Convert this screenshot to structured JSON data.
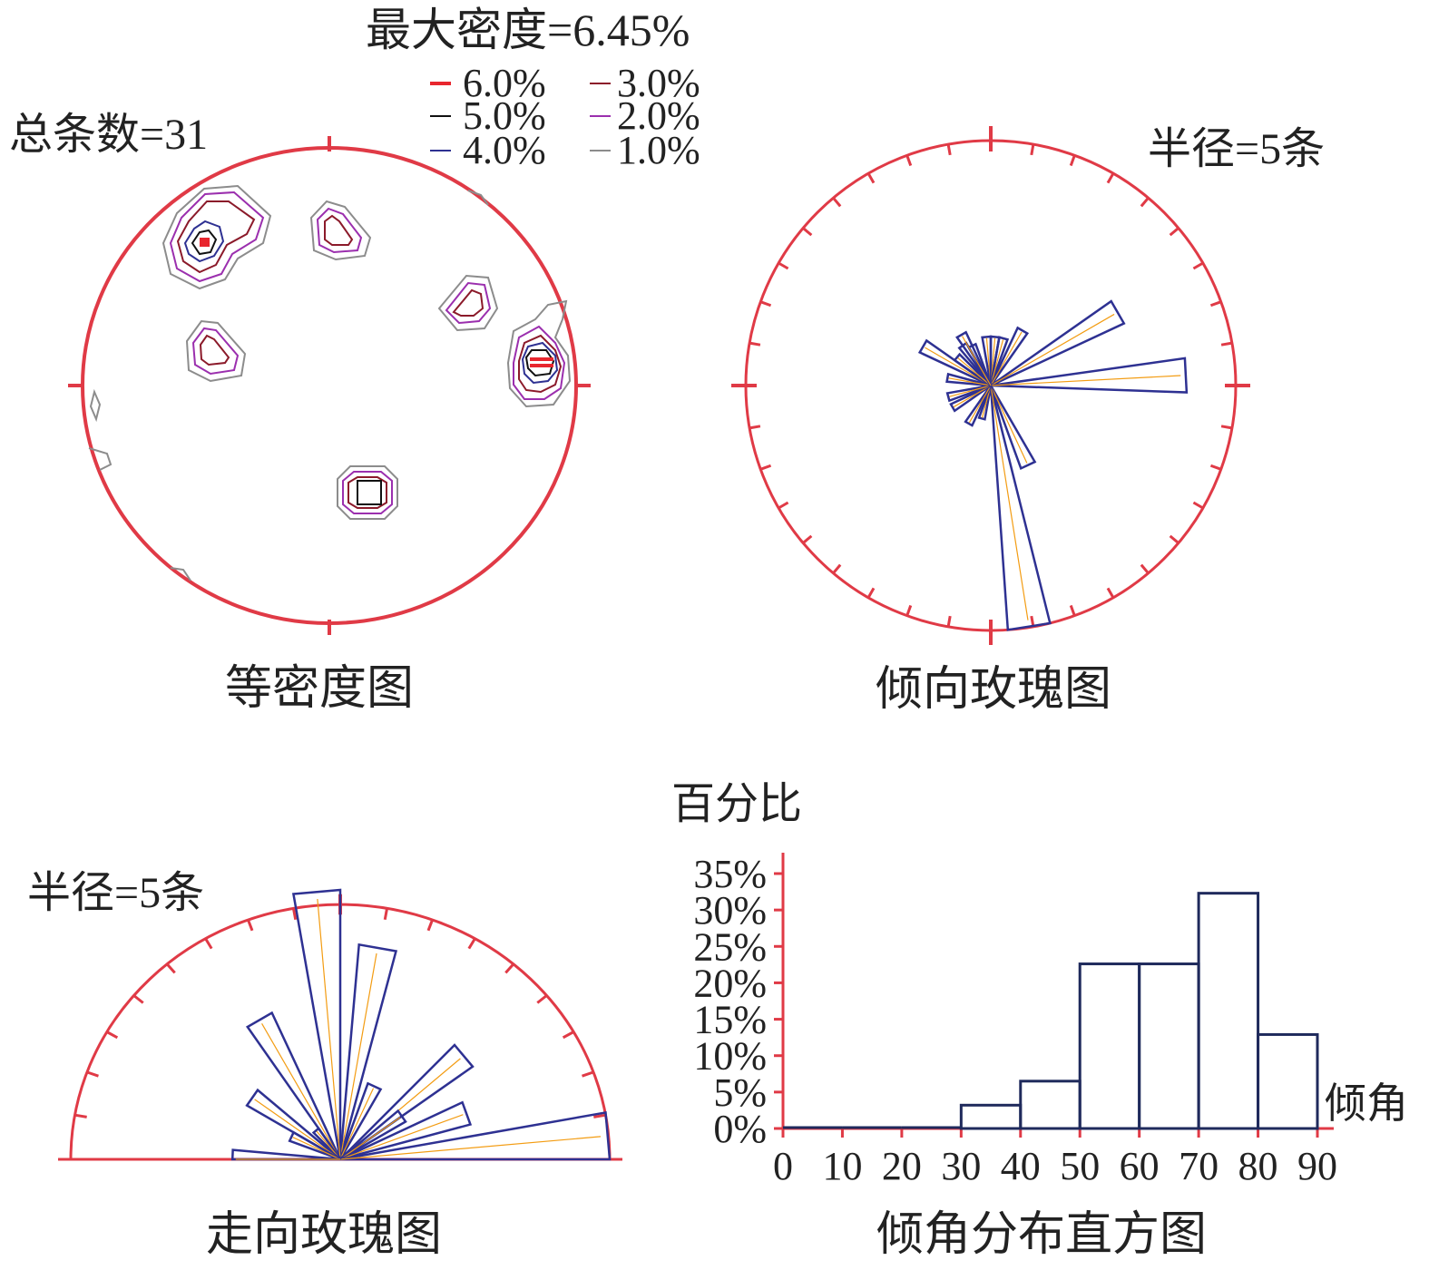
{
  "contour_plot": {
    "caption": "等密度图",
    "total_label": "总条数=31",
    "max_density_label": "最大密度=6.45%",
    "legend": [
      {
        "label": "6.0%",
        "color": "#e8262e"
      },
      {
        "label": "5.0%",
        "color": "#111111"
      },
      {
        "label": "4.0%",
        "color": "#2e3192"
      },
      {
        "label": "3.0%",
        "color": "#8b1a2a"
      },
      {
        "label": "2.0%",
        "color": "#9b2fae"
      },
      {
        "label": "1.0%",
        "color": "#8c8c8c"
      }
    ]
  },
  "dip_direction_rose": {
    "caption": "倾向玫瑰图",
    "radius_label": "半径=5条"
  },
  "strike_rose": {
    "caption": "走向玫瑰图",
    "radius_label": "半径=5条"
  },
  "colors": {
    "frame": "#e03a46",
    "petal": "#2e3192",
    "petal_inner": "#f39c12",
    "bar": "#1f2a5c"
  },
  "chart_data": [
    {
      "type": "rose",
      "name": "dip_direction",
      "radius_count": 5,
      "petals_deg_count": [
        [
          -60,
          1.6
        ],
        [
          -35,
          1.0
        ],
        [
          -25,
          0.9
        ],
        [
          -5,
          1.0
        ],
        [
          5,
          1.0
        ],
        [
          15,
          1.0
        ],
        [
          30,
          1.3
        ],
        [
          60,
          3.0
        ],
        [
          87,
          4.0
        ],
        [
          155,
          1.8
        ],
        [
          171,
          5.0
        ],
        [
          195,
          0.7
        ],
        [
          210,
          0.9
        ],
        [
          240,
          0.9
        ],
        [
          255,
          0.9
        ],
        [
          280,
          0.9
        ],
        [
          310,
          0.9
        ],
        [
          330,
          1.2
        ]
      ]
    },
    {
      "type": "rose",
      "name": "strike",
      "radius_count": 5,
      "petals_deg_count": [
        [
          10,
          4.0
        ],
        [
          25,
          1.5
        ],
        [
          50,
          3.0
        ],
        [
          55,
          1.4
        ],
        [
          70,
          2.5
        ],
        [
          85,
          5.0
        ],
        [
          -5,
          5.0
        ],
        [
          -30,
          3.0
        ],
        [
          -40,
          0.7
        ],
        [
          -55,
          2.0
        ],
        [
          -65,
          1.0
        ],
        [
          -90,
          2.0
        ]
      ]
    },
    {
      "type": "bar",
      "name": "dip_histogram",
      "title": "倾角分布直方图",
      "xlabel": "倾角",
      "ylabel": "百分比",
      "categories": [
        "0-10",
        "10-20",
        "20-30",
        "30-40",
        "40-50",
        "50-60",
        "60-70",
        "70-80",
        "80-90"
      ],
      "values": [
        0,
        0,
        0,
        3.2,
        6.5,
        22.6,
        22.6,
        32.3,
        12.9
      ],
      "xlim": [
        0,
        90
      ],
      "ylim": [
        0,
        35
      ],
      "x_ticks": [
        "0",
        "10",
        "20",
        "30",
        "40",
        "50",
        "60",
        "70",
        "80",
        "90"
      ],
      "y_ticks": [
        "0%",
        "5%",
        "10%",
        "15%",
        "20%",
        "25%",
        "30%",
        "35%"
      ]
    }
  ]
}
